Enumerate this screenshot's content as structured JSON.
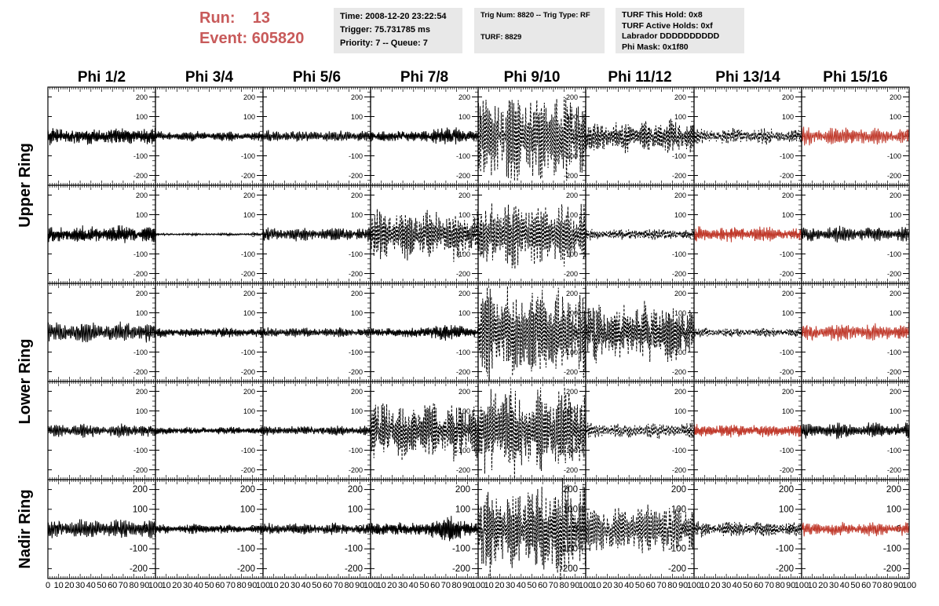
{
  "header": {
    "run_label": "Run:",
    "run_value": "13",
    "event_label": "Event:",
    "event_value": "605820",
    "time_text": "Time: 2008-12-20 23:22:54",
    "trigger_text": "Trigger: 75.731785 ms",
    "priority_text": "Priority: 7 -- Queue: 7",
    "trig_num_text": "Trig Num: 8820 -- Trig Type: RF",
    "turf_text": "TURF: 8829",
    "turf_this_hold_text": "TURF This Hold: 0x8",
    "turf_active_holds_text": "TURF Active Holds: 0xf",
    "labrador_text": "Labrador DDDDDDDDDD",
    "phi_mask_text": "Phi Mask: 0x1f80"
  },
  "colors": {
    "header_red": "#c85a5a",
    "info_box_bg": "#e8e8e8",
    "trace_black": "#000000",
    "trace_red": "#c0392b",
    "frame": "#000000"
  },
  "chart_data": {
    "type": "line",
    "title": "",
    "xlabel": "",
    "ylabel": "",
    "columns": [
      "Phi 1/2",
      "Phi 3/4",
      "Phi 5/6",
      "Phi 7/8",
      "Phi 9/10",
      "Phi 11/12",
      "Phi 13/14",
      "Phi 15/16"
    ],
    "rows": [
      "Upper Ring",
      "Upper Ring",
      "Lower Ring",
      "Lower Ring",
      "Nadir Ring"
    ],
    "row_labels": [
      {
        "label": "Upper Ring",
        "spans_rows": [
          0,
          1
        ]
      },
      {
        "label": "Lower Ring",
        "spans_rows": [
          2,
          3
        ]
      },
      {
        "label": "Nadir Ring",
        "spans_rows": [
          4
        ]
      }
    ],
    "xlim": [
      0,
      100
    ],
    "ylim": [
      -250,
      250
    ],
    "yticks": [
      -200,
      -100,
      0,
      100,
      200
    ],
    "xticks": [
      0,
      10,
      20,
      30,
      40,
      50,
      60,
      70,
      80,
      90,
      100
    ],
    "x_tick_labels": [
      "0",
      "10",
      "20",
      "30",
      "40",
      "50",
      "60",
      "70",
      "80",
      "90",
      "100"
    ],
    "y_tick_labels": [
      "-200",
      "-100",
      "0",
      "100",
      "200"
    ],
    "trace_style": {
      "solid": "solid",
      "dashed": "dashed"
    },
    "cells": [
      [
        {
          "amp": 45,
          "style": "solid",
          "color": "black",
          "envelope": "noise"
        },
        {
          "amp": 25,
          "style": "solid",
          "color": "black",
          "envelope": "noise"
        },
        {
          "amp": 30,
          "style": "solid",
          "color": "black",
          "envelope": "noise"
        },
        {
          "amp": 55,
          "style": "solid",
          "color": "black",
          "envelope": "late"
        },
        {
          "amp": 240,
          "style": "dashed",
          "color": "black",
          "envelope": "bursts"
        },
        {
          "amp": 90,
          "style": "dashed",
          "color": "black",
          "envelope": "bursts"
        },
        {
          "amp": 40,
          "style": "dashed",
          "color": "black",
          "envelope": "noise"
        },
        {
          "amp": 45,
          "style": "solid",
          "color": "red",
          "envelope": "noise"
        }
      ],
      [
        {
          "amp": 45,
          "style": "solid",
          "color": "black",
          "envelope": "noise"
        },
        {
          "amp": 6,
          "style": "solid",
          "color": "black",
          "envelope": "noise"
        },
        {
          "amp": 35,
          "style": "solid",
          "color": "black",
          "envelope": "noise"
        },
        {
          "amp": 130,
          "style": "dashed",
          "color": "black",
          "envelope": "bursts"
        },
        {
          "amp": 170,
          "style": "dashed",
          "color": "black",
          "envelope": "bursts"
        },
        {
          "amp": 30,
          "style": "dashed",
          "color": "black",
          "envelope": "noise"
        },
        {
          "amp": 40,
          "style": "solid",
          "color": "red",
          "envelope": "noise"
        },
        {
          "amp": 40,
          "style": "solid",
          "color": "black",
          "envelope": "noise"
        }
      ],
      [
        {
          "amp": 55,
          "style": "solid",
          "color": "black",
          "envelope": "noise"
        },
        {
          "amp": 25,
          "style": "solid",
          "color": "black",
          "envelope": "noise"
        },
        {
          "amp": 25,
          "style": "solid",
          "color": "black",
          "envelope": "noise"
        },
        {
          "amp": 50,
          "style": "solid",
          "color": "black",
          "envelope": "late"
        },
        {
          "amp": 240,
          "style": "dashed",
          "color": "black",
          "envelope": "bursts"
        },
        {
          "amp": 150,
          "style": "dashed",
          "color": "black",
          "envelope": "bursts"
        },
        {
          "amp": 25,
          "style": "dashed",
          "color": "black",
          "envelope": "noise"
        },
        {
          "amp": 45,
          "style": "solid",
          "color": "red",
          "envelope": "noise"
        }
      ],
      [
        {
          "amp": 35,
          "style": "solid",
          "color": "black",
          "envelope": "noise"
        },
        {
          "amp": 20,
          "style": "solid",
          "color": "black",
          "envelope": "noise"
        },
        {
          "amp": 25,
          "style": "solid",
          "color": "black",
          "envelope": "noise"
        },
        {
          "amp": 150,
          "style": "dashed",
          "color": "black",
          "envelope": "bursts"
        },
        {
          "amp": 230,
          "style": "dashed",
          "color": "black",
          "envelope": "bursts"
        },
        {
          "amp": 40,
          "style": "dashed",
          "color": "black",
          "envelope": "noise"
        },
        {
          "amp": 35,
          "style": "solid",
          "color": "red",
          "envelope": "noise"
        },
        {
          "amp": 40,
          "style": "solid",
          "color": "black",
          "envelope": "noise"
        }
      ],
      [
        {
          "amp": 50,
          "style": "solid",
          "color": "black",
          "envelope": "noise"
        },
        {
          "amp": 25,
          "style": "solid",
          "color": "black",
          "envelope": "noise"
        },
        {
          "amp": 30,
          "style": "solid",
          "color": "black",
          "envelope": "noise"
        },
        {
          "amp": 70,
          "style": "solid",
          "color": "black",
          "envelope": "late"
        },
        {
          "amp": 250,
          "style": "dashed",
          "color": "black",
          "envelope": "bursts"
        },
        {
          "amp": 130,
          "style": "dashed",
          "color": "black",
          "envelope": "bursts"
        },
        {
          "amp": 40,
          "style": "dashed",
          "color": "black",
          "envelope": "noise"
        },
        {
          "amp": 35,
          "style": "solid",
          "color": "red",
          "envelope": "noise"
        }
      ]
    ]
  }
}
